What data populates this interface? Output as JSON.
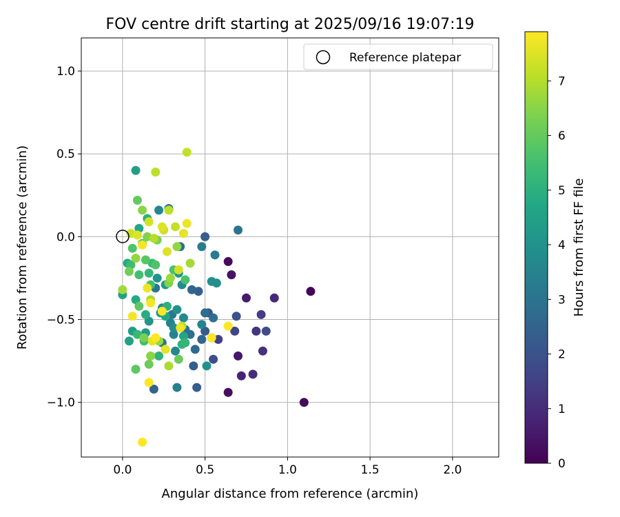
{
  "chart_data": {
    "type": "scatter",
    "title": "FOV centre drift starting at 2025/09/16 19:07:19",
    "xlabel": "Angular distance from reference (arcmin)",
    "ylabel": "Rotation from reference (arcmin)",
    "xlim": [
      -0.25,
      2.28
    ],
    "ylim": [
      -1.33,
      1.2
    ],
    "xticks": [
      0.0,
      0.5,
      1.0,
      1.5,
      2.0
    ],
    "xtick_labels": [
      "0.0",
      "0.5",
      "1.0",
      "1.5",
      "2.0"
    ],
    "yticks": [
      1.0,
      0.5,
      0.0,
      -0.5,
      -1.0
    ],
    "ytick_labels": [
      "1.0",
      "0.5",
      "0.0",
      "−0.5",
      "−1.0"
    ],
    "grid": true,
    "legend": {
      "label": "Reference platepar",
      "placement": "top-right"
    },
    "reference_point": {
      "x": 0.0,
      "y": 0.0
    },
    "colorbar": {
      "label": "Hours from first FF file",
      "range": [
        0,
        7.9
      ],
      "ticks": [
        0,
        1,
        2,
        3,
        4,
        5,
        6,
        7
      ],
      "tick_labels": [
        "0",
        "1",
        "2",
        "3",
        "4",
        "5",
        "6",
        "7"
      ],
      "colormap": "viridis"
    },
    "points": [
      {
        "x": 1.14,
        "y": -0.33,
        "h": 0.1
      },
      {
        "x": 1.1,
        "y": -1.0,
        "h": 0.2
      },
      {
        "x": 0.64,
        "y": -0.15,
        "h": 0.2
      },
      {
        "x": 0.64,
        "y": -0.94,
        "h": 0.3
      },
      {
        "x": 0.66,
        "y": -0.23,
        "h": 0.4
      },
      {
        "x": 0.7,
        "y": -0.72,
        "h": 0.5
      },
      {
        "x": 0.75,
        "y": -0.37,
        "h": 0.6
      },
      {
        "x": 0.72,
        "y": -0.84,
        "h": 0.8
      },
      {
        "x": 0.92,
        "y": -0.37,
        "h": 0.9
      },
      {
        "x": 0.79,
        "y": -0.83,
        "h": 1.0
      },
      {
        "x": 0.85,
        "y": -0.69,
        "h": 1.1
      },
      {
        "x": 0.81,
        "y": -0.57,
        "h": 1.2
      },
      {
        "x": 0.84,
        "y": -0.47,
        "h": 1.4
      },
      {
        "x": 0.58,
        "y": -0.62,
        "h": 1.5
      },
      {
        "x": 0.68,
        "y": -0.57,
        "h": 1.6
      },
      {
        "x": 0.87,
        "y": -0.57,
        "h": 1.8
      },
      {
        "x": 0.55,
        "y": -0.74,
        "h": 1.9
      },
      {
        "x": 0.69,
        "y": -0.48,
        "h": 2.0
      },
      {
        "x": 0.52,
        "y": -0.46,
        "h": 2.1
      },
      {
        "x": 0.5,
        "y": -0.57,
        "h": 2.2
      },
      {
        "x": 0.43,
        "y": -0.78,
        "h": 2.3
      },
      {
        "x": 0.45,
        "y": -0.91,
        "h": 2.3
      },
      {
        "x": 0.46,
        "y": -0.33,
        "h": 2.4
      },
      {
        "x": 0.5,
        "y": 0.0,
        "h": 2.4
      },
      {
        "x": 0.19,
        "y": -0.92,
        "h": 2.5
      },
      {
        "x": 0.54,
        "y": -0.61,
        "h": 2.5
      },
      {
        "x": 0.48,
        "y": -0.62,
        "h": 2.6
      },
      {
        "x": 0.42,
        "y": -0.32,
        "h": 2.6
      },
      {
        "x": 0.44,
        "y": -0.68,
        "h": 2.7
      },
      {
        "x": 0.38,
        "y": -0.56,
        "h": 2.8
      },
      {
        "x": 0.5,
        "y": -0.46,
        "h": 2.8
      },
      {
        "x": 0.55,
        "y": -0.49,
        "h": 2.9
      },
      {
        "x": 0.41,
        "y": -0.59,
        "h": 2.9
      },
      {
        "x": 0.35,
        "y": -0.06,
        "h": 3.0
      },
      {
        "x": 0.7,
        "y": 0.04,
        "h": 3.0
      },
      {
        "x": 0.24,
        "y": -0.64,
        "h": 3.1
      },
      {
        "x": 0.2,
        "y": -0.31,
        "h": 3.1
      },
      {
        "x": 0.3,
        "y": -0.47,
        "h": 3.2
      },
      {
        "x": 0.28,
        "y": 0.17,
        "h": 3.2
      },
      {
        "x": 0.56,
        "y": -0.11,
        "h": 3.3
      },
      {
        "x": 0.48,
        "y": -0.06,
        "h": 3.3
      },
      {
        "x": 0.33,
        "y": -0.91,
        "h": 3.4
      },
      {
        "x": 0.29,
        "y": -0.52,
        "h": 3.4
      },
      {
        "x": 0.48,
        "y": -0.53,
        "h": 3.5
      },
      {
        "x": 0.31,
        "y": -0.59,
        "h": 3.5
      },
      {
        "x": 0.22,
        "y": 0.16,
        "h": 3.6
      },
      {
        "x": 0.32,
        "y": -0.69,
        "h": 3.6
      },
      {
        "x": 0.24,
        "y": -0.43,
        "h": 3.7
      },
      {
        "x": 0.37,
        "y": -0.49,
        "h": 3.7
      },
      {
        "x": 0.31,
        "y": -0.55,
        "h": 3.8
      },
      {
        "x": 0.36,
        "y": -0.29,
        "h": 3.8
      },
      {
        "x": 0.54,
        "y": -0.27,
        "h": 3.9
      },
      {
        "x": 0.57,
        "y": -0.28,
        "h": 3.9
      },
      {
        "x": 0.51,
        "y": -0.78,
        "h": 4.0
      },
      {
        "x": 0.33,
        "y": -0.44,
        "h": 4.0
      },
      {
        "x": 0.21,
        "y": -0.25,
        "h": 4.1
      },
      {
        "x": 0.16,
        "y": -0.51,
        "h": 4.1
      },
      {
        "x": 0.26,
        "y": -0.29,
        "h": 4.2
      },
      {
        "x": 0.34,
        "y": -0.22,
        "h": 4.2
      },
      {
        "x": 0.23,
        "y": -0.46,
        "h": 4.3
      },
      {
        "x": 0.14,
        "y": -0.58,
        "h": 4.3
      },
      {
        "x": 0.06,
        "y": -0.57,
        "h": 4.4
      },
      {
        "x": 0.08,
        "y": 0.4,
        "h": 4.4
      },
      {
        "x": 0.0,
        "y": -0.35,
        "h": 4.5
      },
      {
        "x": 0.04,
        "y": -0.63,
        "h": 4.5
      },
      {
        "x": 0.37,
        "y": -0.6,
        "h": 4.6
      },
      {
        "x": 0.1,
        "y": 0.05,
        "h": 4.7
      },
      {
        "x": 0.26,
        "y": -0.48,
        "h": 4.7
      },
      {
        "x": 0.08,
        "y": -0.38,
        "h": 4.8
      },
      {
        "x": 0.03,
        "y": -0.16,
        "h": 4.8
      },
      {
        "x": 0.14,
        "y": -0.47,
        "h": 4.9
      },
      {
        "x": 0.15,
        "y": 0.11,
        "h": 5.0
      },
      {
        "x": 0.27,
        "y": -0.42,
        "h": 5.0
      },
      {
        "x": 0.22,
        "y": -0.72,
        "h": 5.1
      },
      {
        "x": 0.36,
        "y": -0.65,
        "h": 5.1
      },
      {
        "x": 0.16,
        "y": -0.22,
        "h": 5.2
      },
      {
        "x": 0.38,
        "y": -0.64,
        "h": 5.2
      },
      {
        "x": 0.09,
        "y": -0.59,
        "h": 5.3
      },
      {
        "x": 0.18,
        "y": -0.16,
        "h": 5.3
      },
      {
        "x": 0.05,
        "y": -0.17,
        "h": 5.4
      },
      {
        "x": 0.13,
        "y": -0.63,
        "h": 5.4
      },
      {
        "x": 0.17,
        "y": -0.29,
        "h": 5.5
      },
      {
        "x": 0.1,
        "y": -0.23,
        "h": 5.5
      },
      {
        "x": 0.31,
        "y": -0.2,
        "h": 5.6
      },
      {
        "x": 0.38,
        "y": -0.26,
        "h": 5.6
      },
      {
        "x": 0.06,
        "y": -0.07,
        "h": 5.7
      },
      {
        "x": 0.2,
        "y": -0.17,
        "h": 5.7
      },
      {
        "x": 0.14,
        "y": -0.14,
        "h": 5.8
      },
      {
        "x": 0.08,
        "y": -0.8,
        "h": 5.9
      },
      {
        "x": 0.1,
        "y": -0.42,
        "h": 5.9
      },
      {
        "x": 0.12,
        "y": -0.04,
        "h": 6.0
      },
      {
        "x": 0.09,
        "y": 0.22,
        "h": 6.0
      },
      {
        "x": 0.16,
        "y": -0.77,
        "h": 6.1
      },
      {
        "x": 0.34,
        "y": -0.74,
        "h": 6.1
      },
      {
        "x": 0.04,
        "y": -0.21,
        "h": 6.2
      },
      {
        "x": 0.21,
        "y": -0.02,
        "h": 6.3
      },
      {
        "x": 0.13,
        "y": -0.61,
        "h": 6.3
      },
      {
        "x": 0.15,
        "y": 0.0,
        "h": 6.4
      },
      {
        "x": 0.28,
        "y": -0.28,
        "h": 6.4
      },
      {
        "x": 0.17,
        "y": -0.72,
        "h": 6.5
      },
      {
        "x": 0.12,
        "y": 0.16,
        "h": 6.5
      },
      {
        "x": 0.33,
        "y": -0.06,
        "h": 6.6
      },
      {
        "x": 0.08,
        "y": -0.13,
        "h": 6.6
      },
      {
        "x": 0.22,
        "y": -0.63,
        "h": 6.7
      },
      {
        "x": 0.29,
        "y": -0.25,
        "h": 6.7
      },
      {
        "x": 0.41,
        "y": -0.16,
        "h": 6.8
      },
      {
        "x": 0.0,
        "y": -0.32,
        "h": 6.8
      },
      {
        "x": 0.17,
        "y": -0.38,
        "h": 6.9
      },
      {
        "x": 0.28,
        "y": -0.78,
        "h": 6.9
      },
      {
        "x": 0.19,
        "y": -0.01,
        "h": 7.0
      },
      {
        "x": 0.36,
        "y": -0.54,
        "h": 7.0
      },
      {
        "x": 0.2,
        "y": 0.39,
        "h": 7.1
      },
      {
        "x": 0.28,
        "y": 0.16,
        "h": 7.1
      },
      {
        "x": 0.39,
        "y": 0.51,
        "h": 7.2
      },
      {
        "x": 0.32,
        "y": 0.06,
        "h": 7.2
      },
      {
        "x": 0.25,
        "y": 0.04,
        "h": 7.3
      },
      {
        "x": 0.05,
        "y": 0.02,
        "h": 7.3
      },
      {
        "x": 0.16,
        "y": 0.09,
        "h": 7.4
      },
      {
        "x": 0.34,
        "y": -0.2,
        "h": 7.4
      },
      {
        "x": 0.27,
        "y": -0.09,
        "h": 7.5
      },
      {
        "x": 0.24,
        "y": 0.06,
        "h": 7.5
      },
      {
        "x": 0.09,
        "y": 0.01,
        "h": 7.5
      },
      {
        "x": 0.18,
        "y": -0.63,
        "h": 7.6
      },
      {
        "x": 0.37,
        "y": 0.02,
        "h": 7.6
      },
      {
        "x": 0.26,
        "y": -0.68,
        "h": 7.6
      },
      {
        "x": 0.15,
        "y": -0.31,
        "h": 7.7
      },
      {
        "x": 0.39,
        "y": 0.08,
        "h": 7.7
      },
      {
        "x": 0.35,
        "y": -0.55,
        "h": 7.7
      },
      {
        "x": 0.06,
        "y": -0.48,
        "h": 7.8
      },
      {
        "x": 0.12,
        "y": -0.05,
        "h": 7.8
      },
      {
        "x": 0.17,
        "y": -0.4,
        "h": 7.8
      },
      {
        "x": 0.24,
        "y": -0.45,
        "h": 7.9
      },
      {
        "x": 0.54,
        "y": -0.61,
        "h": 7.9
      },
      {
        "x": 0.16,
        "y": -0.88,
        "h": 7.9
      },
      {
        "x": 0.12,
        "y": -1.24,
        "h": 7.9
      },
      {
        "x": 0.64,
        "y": -0.54,
        "h": 7.9
      },
      {
        "x": 0.2,
        "y": -0.61,
        "h": 7.9
      }
    ]
  }
}
